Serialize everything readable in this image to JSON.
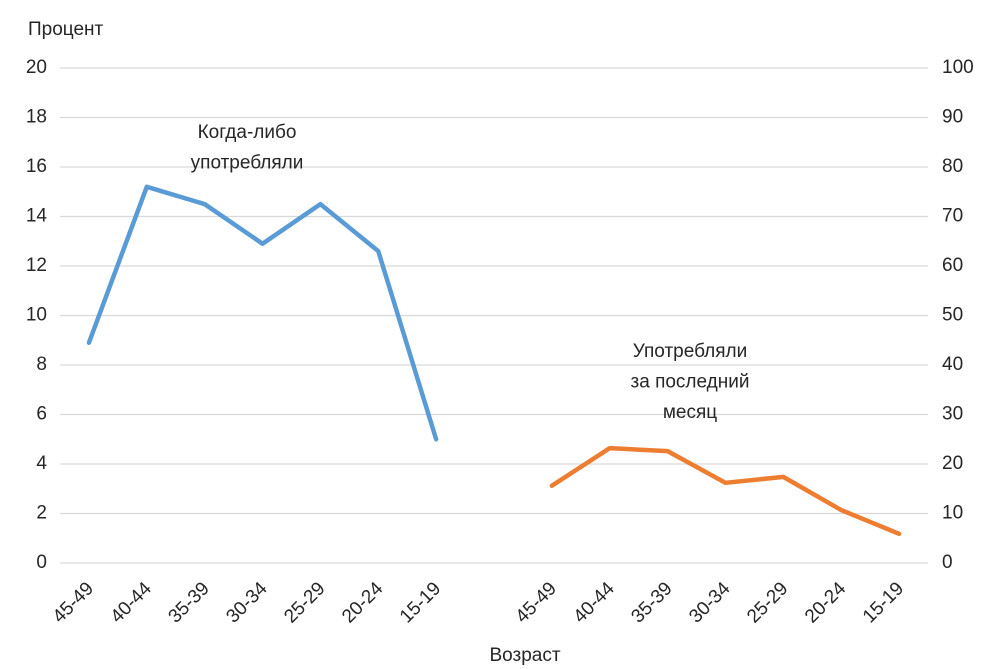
{
  "chart_data": {
    "type": "line",
    "y_label": "Процент",
    "x_label": "Возраст",
    "categories": [
      "45-49",
      "40-44",
      "35-39",
      "30-34",
      "25-29",
      "20-24",
      "15-19",
      null,
      "45-49",
      "40-44",
      "35-39",
      "30-34",
      "25-29",
      "20-24",
      "15-19"
    ],
    "series": [
      {
        "name": "Когда-либо употребляли",
        "color": "#5b9bd5",
        "axis": "y",
        "values": [
          8.9,
          15.2,
          14.5,
          12.9,
          14.5,
          12.6,
          5.0,
          null,
          null,
          null,
          null,
          null,
          null,
          null,
          null
        ]
      },
      {
        "name": "Употребляли за последний месяц",
        "color": "#ed7d31",
        "axis": "y2",
        "values": [
          null,
          null,
          null,
          null,
          null,
          null,
          null,
          null,
          15.6,
          23.2,
          22.6,
          16.2,
          17.4,
          10.7,
          5.9
        ]
      }
    ],
    "annotations": [
      {
        "lines": [
          "Когда-либо",
          "употребляли"
        ]
      },
      {
        "lines": [
          "Употребляли",
          "за последний",
          "месяц"
        ]
      }
    ],
    "ylim": [
      0,
      20
    ],
    "yticks": [
      0,
      2,
      4,
      6,
      8,
      10,
      12,
      14,
      16,
      18,
      20
    ],
    "y2lim": [
      0,
      100
    ],
    "y2ticks": [
      0,
      10,
      20,
      30,
      40,
      50,
      60,
      70,
      80,
      90,
      100
    ],
    "grid": true
  }
}
